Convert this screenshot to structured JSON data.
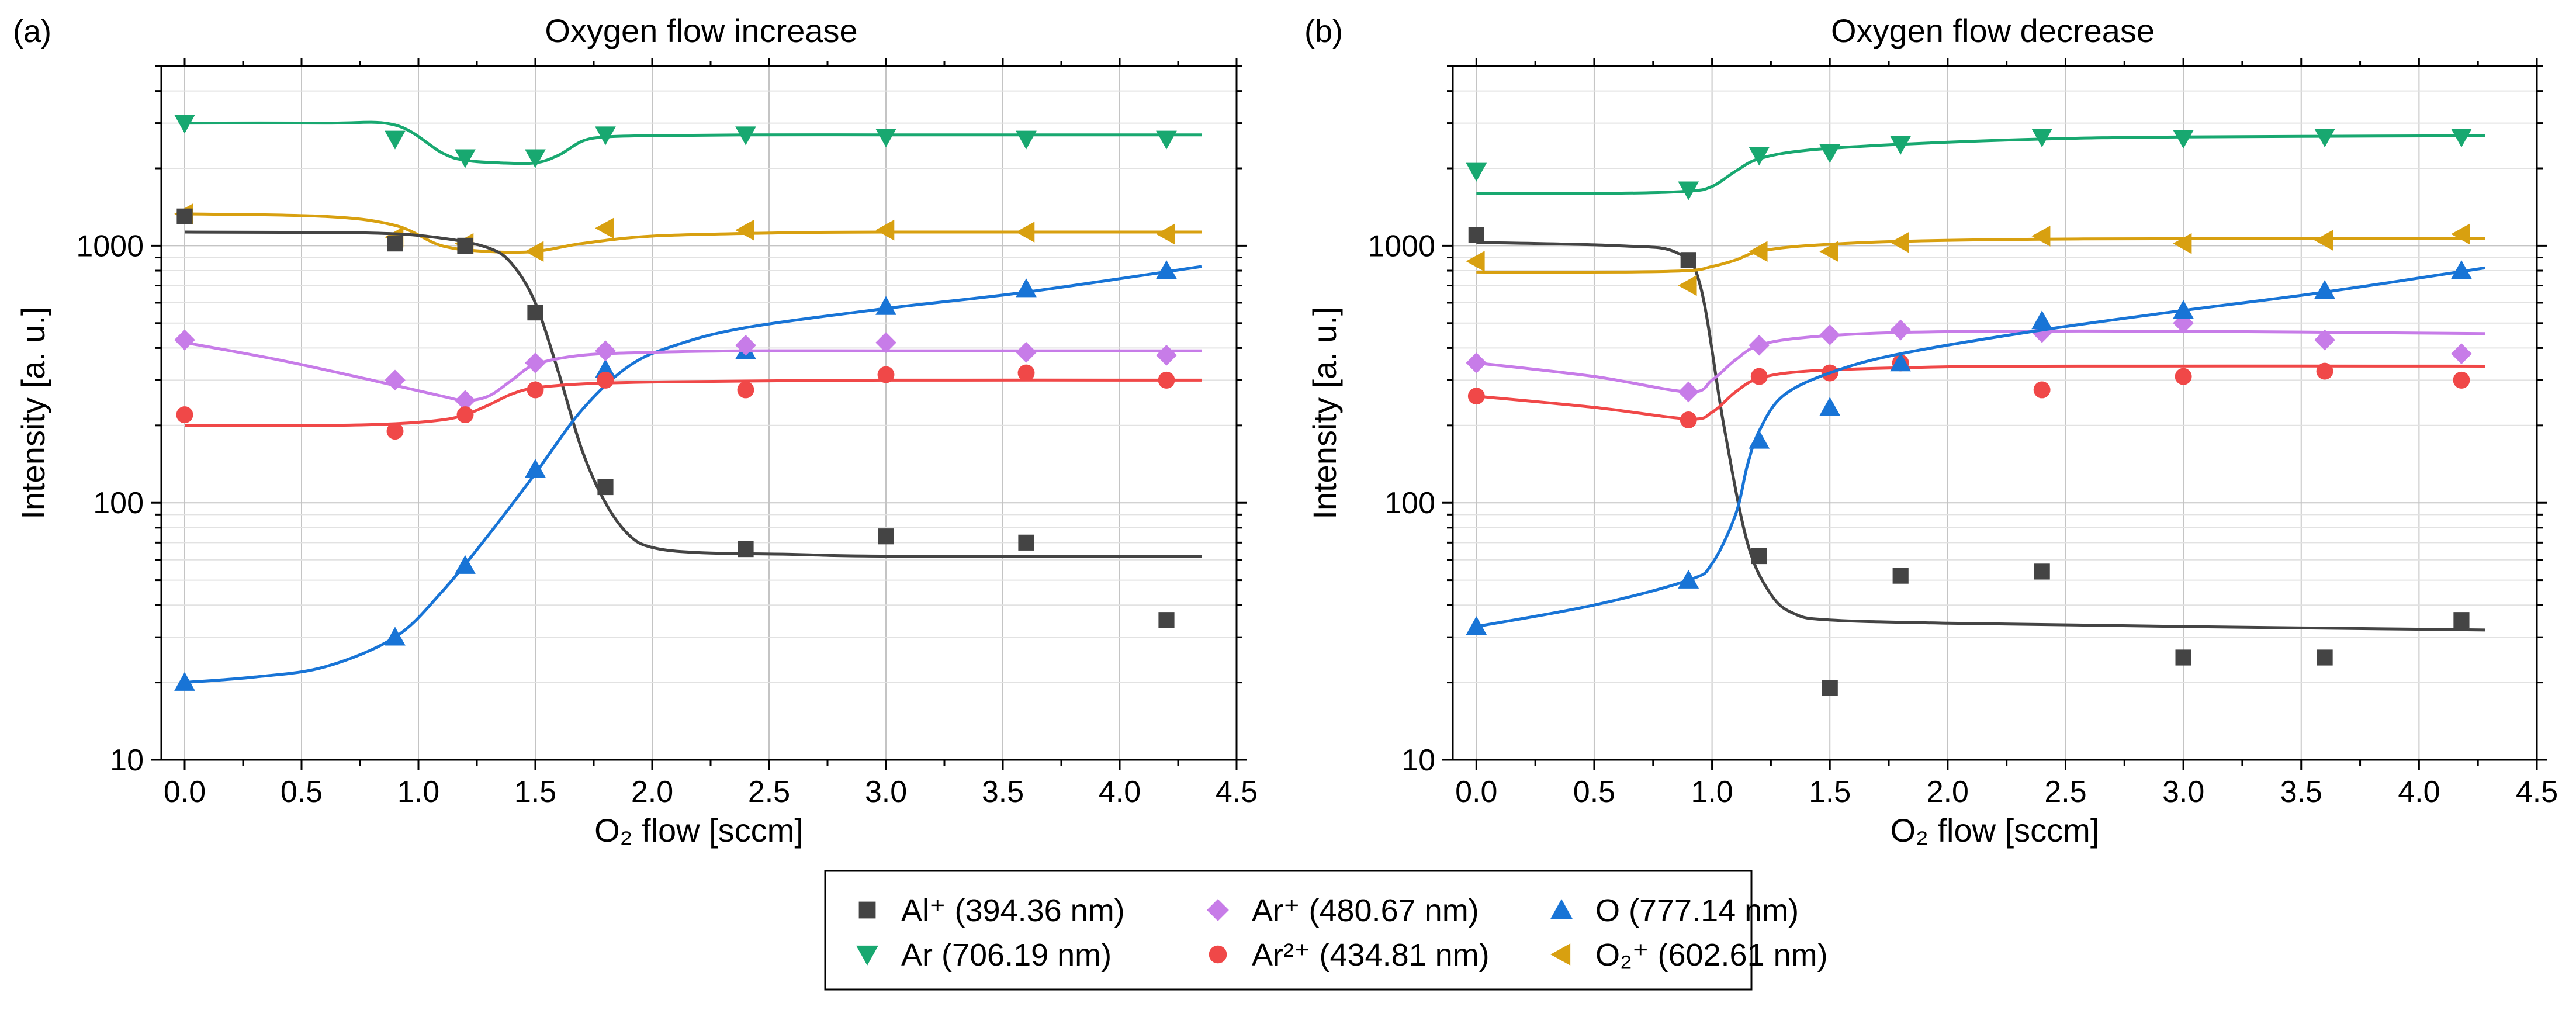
{
  "legend": {
    "entries": [
      {
        "key": "al_plus",
        "label": "Al⁺ (394.36 nm)",
        "color": "#444444",
        "marker": "square"
      },
      {
        "key": "ar_plus",
        "label": "Ar⁺ (480.67 nm)",
        "color": "#C77CE8",
        "marker": "diamond"
      },
      {
        "key": "o",
        "label": "O (777.14 nm)",
        "color": "#1874D6",
        "marker": "triangle-up"
      },
      {
        "key": "ar",
        "label": "Ar (706.19 nm)",
        "color": "#18A870",
        "marker": "triangle-down"
      },
      {
        "key": "ar_2plus",
        "label": "Ar²⁺ (434.81 nm)",
        "color": "#F04848",
        "marker": "circle"
      },
      {
        "key": "o2_plus",
        "label": "O₂⁺ (602.61 nm)",
        "color": "#D8A010",
        "marker": "triangle-left"
      }
    ]
  },
  "chart_data": [
    {
      "type": "scatter",
      "panel_label": "(a)",
      "title": "Oxygen flow increase",
      "xlabel": "O₂ flow [sccm]",
      "ylabel": "Intensity [a. u.]",
      "xlim": [
        -0.1,
        4.5
      ],
      "ylim": [
        10,
        5000
      ],
      "yscale": "log",
      "grid": true,
      "xticks": [
        0.0,
        0.5,
        1.0,
        1.5,
        2.0,
        2.5,
        3.0,
        3.5,
        4.0,
        4.5
      ],
      "xtick_labels": [
        "0.0",
        "0.5",
        "1.0",
        "1.5",
        "2.0",
        "2.5",
        "3.0",
        "3.5",
        "4.0",
        "4.5"
      ],
      "yticks": [
        10,
        100,
        1000
      ],
      "ytick_labels": [
        "10",
        "100",
        "1000"
      ],
      "x": [
        0.0,
        0.9,
        1.2,
        1.5,
        1.8,
        2.4,
        3.0,
        3.6,
        4.2
      ],
      "series": [
        {
          "key": "ar",
          "name": "Ar (706.19 nm)",
          "values": [
            3000,
            2600,
            2200,
            2200,
            2700,
            2700,
            2650,
            2600,
            2600
          ],
          "fit": {
            "x": [
              0,
              0.6,
              0.9,
              1.1,
              1.2,
              1.35,
              1.5,
              1.6,
              1.7,
              1.8,
              2.0,
              2.4,
              3.0,
              3.6,
              4.35
            ],
            "y": [
              3000,
              3000,
              2950,
              2300,
              2150,
              2100,
              2100,
              2250,
              2550,
              2650,
              2680,
              2700,
              2700,
              2700,
              2700
            ]
          }
        },
        {
          "key": "o2_plus",
          "name": "O₂⁺ (602.61 nm)",
          "values": [
            1330,
            1080,
            1020,
            950,
            1170,
            1150,
            1150,
            1130,
            1110
          ],
          "fit": {
            "x": [
              0,
              0.6,
              0.9,
              1.1,
              1.3,
              1.5,
              1.7,
              2.0,
              2.5,
              3.0,
              4.35
            ],
            "y": [
              1330,
              1300,
              1200,
              1000,
              950,
              950,
              1020,
              1090,
              1120,
              1130,
              1130
            ]
          }
        },
        {
          "key": "al_plus",
          "name": "Al⁺ (394.36 nm)",
          "values": [
            1300,
            1020,
            1000,
            550,
            115,
            66,
            74,
            70,
            35
          ],
          "fit": {
            "x": [
              0,
              0.8,
              1.1,
              1.3,
              1.4,
              1.5,
              1.6,
              1.7,
              1.8,
              1.9,
              2.0,
              2.2,
              2.6,
              3.0,
              4.35
            ],
            "y": [
              1130,
              1120,
              1070,
              980,
              850,
              600,
              320,
              160,
              100,
              75,
              67,
              64,
              63,
              62,
              62
            ]
          }
        },
        {
          "key": "o",
          "name": "O (777.14 nm)",
          "values": [
            20,
            30,
            57,
            135,
            330,
            390,
            580,
            680,
            800
          ],
          "fit": {
            "x": [
              0,
              0.3,
              0.6,
              0.9,
              1.1,
              1.3,
              1.5,
              1.7,
              1.9,
              2.1,
              2.4,
              3.0,
              3.6,
              4.35
            ],
            "y": [
              20,
              21,
              23,
              30,
              45,
              75,
              130,
              230,
              340,
              410,
              480,
              570,
              660,
              830
            ]
          }
        },
        {
          "key": "ar_plus",
          "name": "Ar⁺ (480.67 nm)",
          "values": [
            430,
            300,
            250,
            350,
            390,
            410,
            420,
            385,
            375
          ],
          "fit": {
            "x": [
              0,
              0.4,
              0.8,
              1.1,
              1.2,
              1.3,
              1.4,
              1.5,
              1.7,
              2.0,
              2.4,
              3.0,
              4.35
            ],
            "y": [
              420,
              360,
              300,
              260,
              250,
              260,
              300,
              345,
              375,
              385,
              390,
              390,
              390
            ]
          }
        },
        {
          "key": "ar_2plus",
          "name": "Ar²⁺ (434.81 nm)",
          "values": [
            220,
            190,
            220,
            275,
            300,
            275,
            315,
            320,
            300
          ],
          "fit": {
            "x": [
              0,
              0.6,
              0.9,
              1.1,
              1.2,
              1.3,
              1.4,
              1.5,
              1.7,
              2.0,
              2.5,
              3.0,
              4.35
            ],
            "y": [
              200,
              200,
              203,
              210,
              220,
              240,
              265,
              280,
              290,
              295,
              298,
              300,
              300
            ]
          }
        }
      ]
    },
    {
      "type": "scatter",
      "panel_label": "(b)",
      "title": "Oxygen flow decrease",
      "xlabel": "O₂ flow [sccm]",
      "ylabel": "Intensity [a. u.]",
      "xlim": [
        -0.1,
        4.5
      ],
      "ylim": [
        10,
        5000
      ],
      "yscale": "log",
      "grid": true,
      "xticks": [
        0.0,
        0.5,
        1.0,
        1.5,
        2.0,
        2.5,
        3.0,
        3.5,
        4.0,
        4.5
      ],
      "xtick_labels": [
        "0.0",
        "0.5",
        "1.0",
        "1.5",
        "2.0",
        "2.5",
        "3.0",
        "3.5",
        "4.0",
        "4.5"
      ],
      "yticks": [
        10,
        100,
        1000
      ],
      "ytick_labels": [
        "10",
        "100",
        "1000"
      ],
      "x": [
        0.0,
        0.9,
        1.2,
        1.5,
        1.8,
        2.4,
        3.0,
        3.6,
        4.18
      ],
      "series": [
        {
          "key": "ar",
          "name": "Ar (706.19 nm)",
          "values": [
            1950,
            1650,
            2250,
            2300,
            2480,
            2650,
            2620,
            2650,
            2650
          ],
          "fit": {
            "x": [
              0,
              0.6,
              0.9,
              1.0,
              1.1,
              1.2,
              1.4,
              1.8,
              2.4,
              3.0,
              4.28
            ],
            "y": [
              1600,
              1600,
              1630,
              1700,
              1950,
              2180,
              2350,
              2480,
              2600,
              2650,
              2680
            ]
          }
        },
        {
          "key": "al_plus",
          "name": "Al⁺ (394.36 nm)",
          "values": [
            1100,
            880,
            62,
            19,
            52,
            54,
            25,
            25,
            35
          ],
          "fit": {
            "x": [
              0,
              0.6,
              0.85,
              0.95,
              1.05,
              1.15,
              1.25,
              1.35,
              1.5,
              2.0,
              3.0,
              4.28
            ],
            "y": [
              1030,
              1000,
              940,
              700,
              200,
              70,
              44,
              37,
              35,
              34,
              33,
              32
            ]
          }
        },
        {
          "key": "o2_plus",
          "name": "O₂⁺ (602.61 nm)",
          "values": [
            870,
            700,
            950,
            950,
            1030,
            1090,
            1020,
            1050,
            1110
          ],
          "fit": {
            "x": [
              0,
              0.6,
              0.9,
              1.0,
              1.1,
              1.2,
              1.4,
              1.8,
              2.4,
              3.0,
              4.28
            ],
            "y": [
              790,
              790,
              800,
              830,
              880,
              950,
              1000,
              1040,
              1060,
              1065,
              1070
            ]
          }
        },
        {
          "key": "ar_plus",
          "name": "Ar⁺ (480.67 nm)",
          "values": [
            350,
            270,
            410,
            450,
            470,
            460,
            500,
            430,
            380
          ],
          "fit": {
            "x": [
              0,
              0.5,
              0.9,
              1.0,
              1.1,
              1.2,
              1.4,
              1.8,
              2.4,
              3.0,
              4.28
            ],
            "y": [
              350,
              310,
              270,
              300,
              360,
              410,
              440,
              460,
              465,
              465,
              455
            ]
          }
        },
        {
          "key": "ar_2plus",
          "name": "Ar²⁺ (434.81 nm)",
          "values": [
            260,
            210,
            310,
            320,
            350,
            275,
            310,
            325,
            300
          ],
          "fit": {
            "x": [
              0,
              0.5,
              0.9,
              1.0,
              1.1,
              1.2,
              1.4,
              1.8,
              2.4,
              4.28
            ],
            "y": [
              260,
              235,
              212,
              225,
              270,
              305,
              325,
              335,
              340,
              340
            ]
          }
        },
        {
          "key": "o",
          "name": "O (777.14 nm)",
          "values": [
            33,
            50,
            175,
            235,
            350,
            510,
            560,
            670,
            800
          ],
          "fit": {
            "x": [
              0,
              0.5,
              0.9,
              1.0,
              1.1,
              1.15,
              1.2,
              1.3,
              1.5,
              1.8,
              2.4,
              3.0,
              3.6,
              4.28
            ],
            "y": [
              33,
              40,
              50,
              58,
              90,
              140,
              190,
              260,
              320,
              380,
              470,
              560,
              660,
              820
            ]
          }
        }
      ]
    }
  ]
}
